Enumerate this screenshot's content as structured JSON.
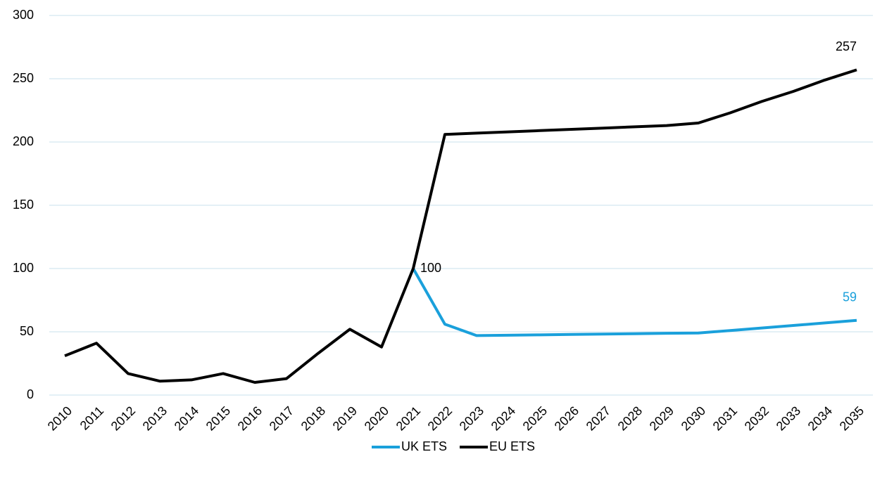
{
  "chart_data": {
    "type": "line",
    "categories": [
      "2010",
      "2011",
      "2012",
      "2013",
      "2014",
      "2015",
      "2016",
      "2017",
      "2018",
      "2019",
      "2020",
      "2021",
      "2022",
      "2023",
      "2024",
      "2025",
      "2026",
      "2027",
      "2028",
      "2029",
      "2030",
      "2031",
      "2032",
      "2033",
      "2034",
      "2035"
    ],
    "series": [
      {
        "name": "UK ETS",
        "color": "#1aa0db",
        "values": [
          null,
          null,
          null,
          null,
          null,
          null,
          null,
          null,
          null,
          null,
          null,
          100,
          56,
          47,
          47.3,
          47.6,
          47.9,
          48.2,
          48.5,
          48.8,
          49,
          51,
          53,
          55,
          57,
          59
        ],
        "value_labels": [
          null,
          null,
          null,
          null,
          null,
          null,
          null,
          null,
          null,
          null,
          null,
          null,
          null,
          null,
          null,
          null,
          null,
          null,
          null,
          null,
          null,
          null,
          null,
          null,
          null,
          "59"
        ]
      },
      {
        "name": "EU ETS",
        "color": "#000000",
        "values": [
          31,
          41,
          17,
          11,
          12,
          17,
          10,
          13,
          33,
          52,
          38,
          100,
          206,
          207,
          208,
          209,
          210,
          211,
          212,
          213,
          215,
          223,
          232,
          240,
          249,
          257
        ],
        "value_labels": [
          null,
          null,
          null,
          null,
          null,
          null,
          null,
          null,
          null,
          null,
          null,
          "100",
          null,
          null,
          null,
          null,
          null,
          null,
          null,
          null,
          null,
          null,
          null,
          null,
          null,
          "257"
        ]
      }
    ],
    "ylim": [
      0,
      300
    ],
    "yticks": [
      0,
      50,
      100,
      150,
      200,
      250,
      300
    ],
    "grid": true,
    "legend": "bottom"
  }
}
